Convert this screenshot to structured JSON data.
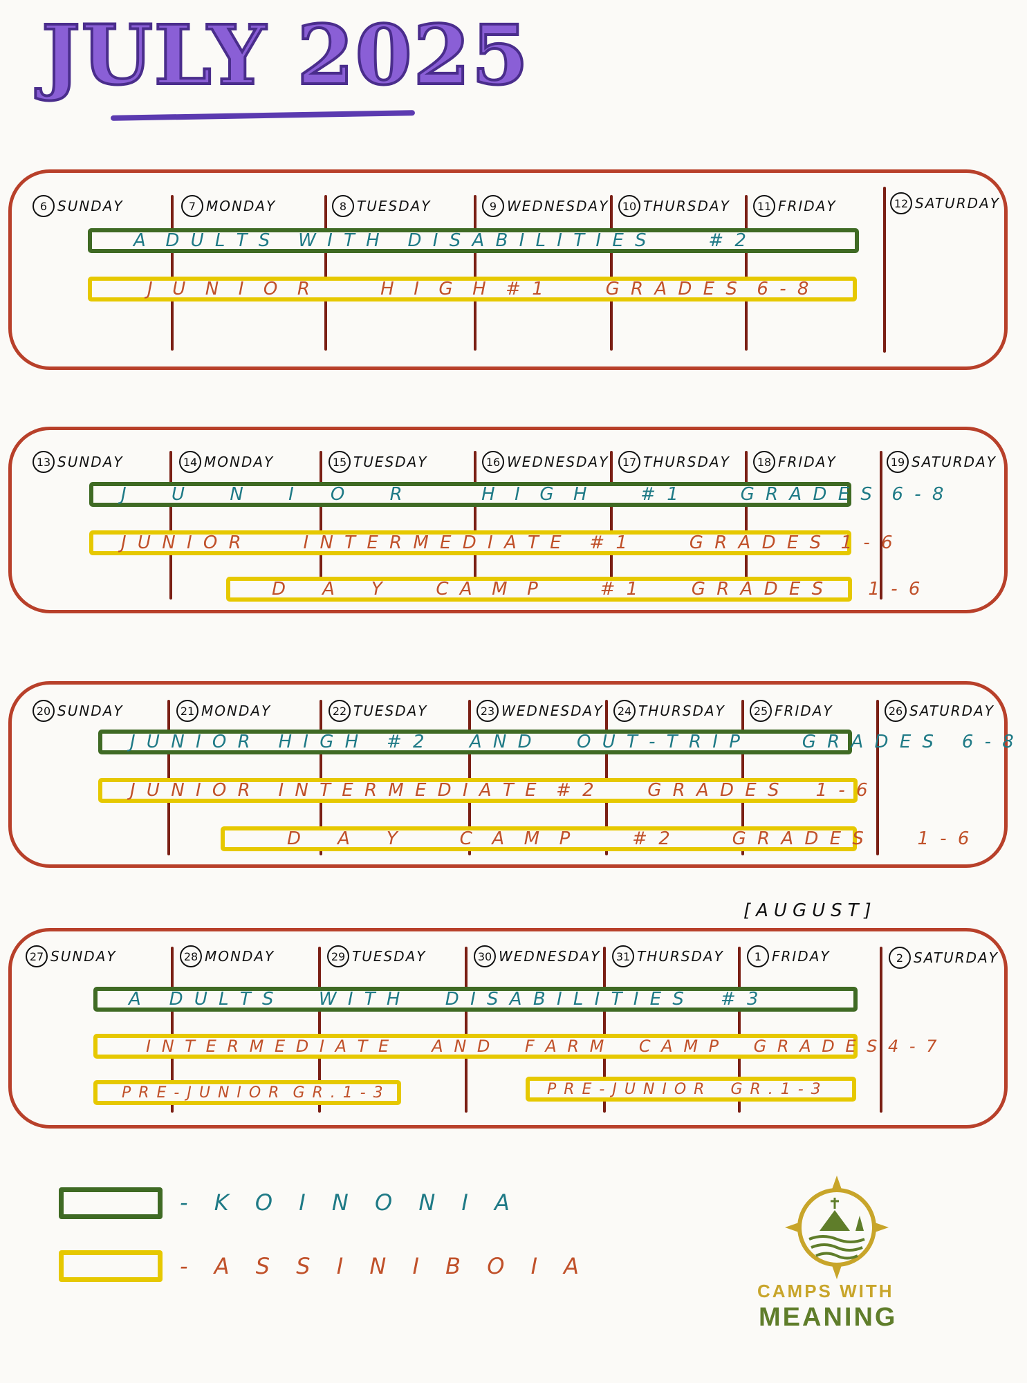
{
  "title": "JULY 2025",
  "weeks": [
    {
      "days": [
        {
          "num": "6",
          "name": "SUNDAY"
        },
        {
          "num": "7",
          "name": "MONDAY"
        },
        {
          "num": "8",
          "name": "TUESDAY"
        },
        {
          "num": "9",
          "name": "WEDNESDAY"
        },
        {
          "num": "10",
          "name": "THURSDAY"
        },
        {
          "num": "11",
          "name": "FRIDAY"
        },
        {
          "num": "12",
          "name": "SATURDAY"
        }
      ],
      "bars": [
        {
          "label": "A  D U L T S   W I T H   D I S A B I L I T I E S       # 2",
          "camp": "koinonia"
        },
        {
          "label": "J  U  N  I  O  R        H  I  G  H  # 1       G R A D E S  6 - 8",
          "camp": "assiniboia"
        }
      ]
    },
    {
      "days": [
        {
          "num": "13",
          "name": "SUNDAY"
        },
        {
          "num": "14",
          "name": "MONDAY"
        },
        {
          "num": "15",
          "name": "TUESDAY"
        },
        {
          "num": "16",
          "name": "WEDNESDAY"
        },
        {
          "num": "17",
          "name": "THURSDAY"
        },
        {
          "num": "18",
          "name": "FRIDAY"
        },
        {
          "num": "19",
          "name": "SATURDAY"
        }
      ],
      "bars": [
        {
          "label": "J     U     N     I    O     R         H  I  G  H      # 1       G R A D E S  6 - 8",
          "camp": "koinonia"
        },
        {
          "label": "J U N I O R       I N T E R M E D I A T E   # 1       G R A D E S  1 - 6",
          "camp": "assiniboia"
        },
        {
          "label": "D    A    Y      C A  M  P       # 1      G R A D E S     1 - 6",
          "camp": "assiniboia"
        }
      ]
    },
    {
      "days": [
        {
          "num": "20",
          "name": "SUNDAY"
        },
        {
          "num": "21",
          "name": "MONDAY"
        },
        {
          "num": "22",
          "name": "TUESDAY"
        },
        {
          "num": "23",
          "name": "WEDNESDAY"
        },
        {
          "num": "24",
          "name": "THURSDAY"
        },
        {
          "num": "25",
          "name": "FRIDAY"
        },
        {
          "num": "26",
          "name": "SATURDAY"
        }
      ],
      "bars": [
        {
          "label": "J U N I O R   H I G H   # 2     A N D     O U T - T R I P       G R A D E S   6 - 8",
          "camp": "koinonia"
        },
        {
          "label": "J U N I O R   I N T E R M E D I A T E  # 2      G R A D E S    1 - 6",
          "camp": "assiniboia"
        },
        {
          "label": "D    A    Y       C  A  M  P       # 2       G R A D E S      1 - 6",
          "camp": "assiniboia"
        }
      ]
    },
    {
      "days": [
        {
          "num": "27",
          "name": "SUNDAY"
        },
        {
          "num": "28",
          "name": "MONDAY"
        },
        {
          "num": "29",
          "name": "TUESDAY"
        },
        {
          "num": "30",
          "name": "WEDNESDAY"
        },
        {
          "num": "31",
          "name": "THURSDAY"
        },
        {
          "num": "1",
          "name": "FRIDAY"
        },
        {
          "num": "2",
          "name": "SATURDAY"
        }
      ],
      "bars": [
        {
          "label": "A   D U L T S     W I T H     D I S A B I L I T I E S    # 3",
          "camp": "koinonia"
        },
        {
          "label": "I N T E R M E D I A T E     A N D    F A R M    C A M P    G R A D E S 4 - 7",
          "camp": "assiniboia"
        },
        {
          "label": "P R E - J U N I O R  G R . 1 - 3",
          "camp": "assiniboia"
        },
        {
          "label": "P R E - J U N I O R    G R . 1 - 3",
          "camp": "assiniboia"
        }
      ]
    }
  ],
  "august_marker": "[AUGUST]",
  "legend": [
    {
      "label": "- K O I N O N I A",
      "color": "#3f6a24"
    },
    {
      "label": "- A S S I N I B O I A",
      "color": "#e6c800"
    }
  ],
  "logo": {
    "line1": "CAMPS WITH",
    "line2": "MEANING"
  }
}
